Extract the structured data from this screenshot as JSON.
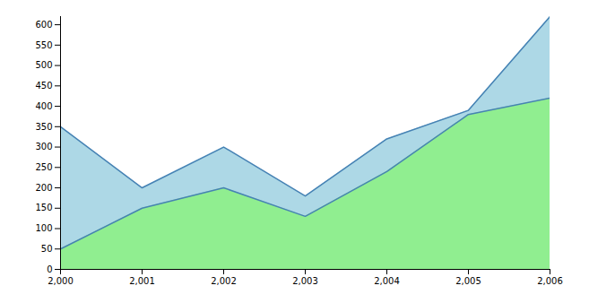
{
  "chart_data": {
    "type": "area",
    "x": [
      2000,
      2001,
      2002,
      2003,
      2004,
      2005,
      2006
    ],
    "series": [
      {
        "color": "#add8e6",
        "values": [
          350,
          200,
          300,
          180,
          320,
          390,
          620
        ]
      },
      {
        "color": "#90ee90",
        "values": [
          50,
          150,
          200,
          130,
          240,
          380,
          420
        ]
      }
    ],
    "xlim": [
      2000,
      2006
    ],
    "xticks": [
      {
        "value": 2000,
        "label": "2,000"
      },
      {
        "value": 2001,
        "label": "2,001"
      },
      {
        "value": 2002,
        "label": "2,002"
      },
      {
        "value": 2003,
        "label": "2,003"
      },
      {
        "value": 2004,
        "label": "2,004"
      },
      {
        "value": 2005,
        "label": "2,005"
      },
      {
        "value": 2006,
        "label": "2,006"
      }
    ],
    "ylim": [
      0,
      620
    ],
    "yticks": [
      0,
      50,
      100,
      150,
      200,
      250,
      300,
      350,
      400,
      450,
      500,
      550,
      600
    ],
    "stacked": false,
    "grid": false
  }
}
